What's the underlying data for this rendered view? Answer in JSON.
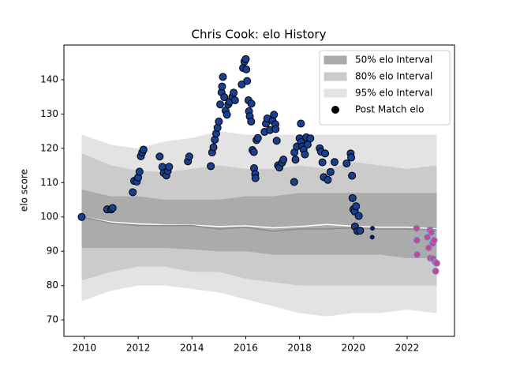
{
  "chart_data": {
    "type": "scatter",
    "title": "Chris Cook: elo History",
    "y_label": "elo score",
    "xlim": [
      2009.24,
      2023.76
    ],
    "ylim": [
      65.2,
      150.1
    ],
    "xticks": [
      2010,
      2012,
      2014,
      2016,
      2018,
      2020,
      2022
    ],
    "yticks": [
      70,
      80,
      90,
      100,
      110,
      120,
      130,
      140
    ],
    "grid": false,
    "legend": "upper right",
    "bands": [
      {
        "name": "95% elo Interval",
        "color": "#e3e3e3",
        "x": [
          2009.9,
          2011,
          2012,
          2013,
          2014,
          2015,
          2016,
          2017,
          2018,
          2019,
          2020,
          2021,
          2022,
          2023.1
        ],
        "lower": [
          75.5,
          78.5,
          80,
          80,
          79,
          78,
          76,
          74,
          72,
          71,
          72,
          72,
          73,
          72
        ],
        "upper": [
          124,
          121,
          120,
          122,
          123,
          125,
          124,
          124,
          124,
          124,
          124,
          124,
          124,
          124
        ]
      },
      {
        "name": "80% elo Interval",
        "color": "#cbcbcb",
        "x": [
          2009.9,
          2011,
          2012,
          2013,
          2014,
          2015,
          2016,
          2017,
          2018,
          2019,
          2020,
          2021,
          2022,
          2023.1
        ],
        "lower": [
          81.5,
          84,
          85.5,
          85.5,
          84,
          84,
          82,
          81,
          80,
          80,
          80,
          80,
          80,
          80
        ],
        "upper": [
          118.5,
          115,
          113.5,
          113,
          114,
          115,
          114,
          114,
          115,
          114,
          116,
          115,
          114,
          115
        ]
      },
      {
        "name": "50% elo Interval",
        "color": "#ababab",
        "x": [
          2009.9,
          2011,
          2012,
          2013,
          2014,
          2015,
          2016,
          2017,
          2018,
          2019,
          2020,
          2021,
          2022,
          2023.1
        ],
        "lower": [
          91,
          91,
          91,
          91,
          90.5,
          90,
          90,
          89,
          89,
          89,
          89,
          89,
          88,
          88
        ],
        "upper": [
          108,
          106,
          106,
          105,
          105,
          105,
          106,
          106,
          107,
          107,
          107,
          107,
          107,
          107
        ]
      }
    ],
    "lines": [
      {
        "color": "#ffffff",
        "x": [
          2009.9,
          2011,
          2012,
          2013,
          2014,
          2015,
          2016,
          2017,
          2018,
          2019,
          2020,
          2021,
          2022,
          2023.1
        ],
        "values": [
          100,
          98.5,
          98,
          97.7,
          97.6,
          97.2,
          97.4,
          96.8,
          97.2,
          97.8,
          97.3,
          97,
          97,
          96.5
        ]
      },
      {
        "color": "#8a8a8a",
        "x": [
          2009.9,
          2011,
          2012,
          2013,
          2014,
          2015,
          2016,
          2017,
          2018,
          2019,
          2020,
          2021,
          2022,
          2023.1
        ],
        "values": [
          100,
          98.2,
          97.5,
          97.5,
          97.5,
          96.5,
          97,
          95.8,
          96.5,
          96.5,
          96.8,
          96.5,
          96.5,
          96.3
        ]
      }
    ],
    "series": [
      {
        "name": "Post Match elo",
        "legend_color": "#000000",
        "color": "#1a3f8f",
        "edgecolor": "#000000",
        "x": [
          2009.9,
          2010.85,
          2011.0,
          2011.05,
          2011.8,
          2011.85,
          2011.95,
          2012.0,
          2012.05,
          2012.1,
          2012.15,
          2012.2,
          2012.8,
          2012.9,
          2012.95,
          2013.05,
          2013.1,
          2013.15,
          2013.85,
          2013.9,
          2014.7,
          2014.75,
          2014.8,
          2014.85,
          2014.9,
          2014.95,
          2015.0,
          2015.05,
          2015.1,
          2015.12,
          2015.15,
          2015.2,
          2015.25,
          2015.3,
          2015.35,
          2015.4,
          2015.5,
          2015.55,
          2015.6,
          2015.85,
          2015.9,
          2015.95,
          2016.0,
          2016.02,
          2016.05,
          2016.1,
          2016.12,
          2016.15,
          2016.2,
          2016.21,
          2016.25,
          2016.3,
          2016.31,
          2016.35,
          2016.36,
          2016.4,
          2016.45,
          2016.7,
          2016.75,
          2016.8,
          2016.9,
          2017.0,
          2017.05,
          2017.1,
          2017.11,
          2017.15,
          2017.2,
          2017.25,
          2017.35,
          2017.4,
          2017.8,
          2017.81,
          2017.85,
          2017.9,
          2018.0,
          2018.05,
          2018.06,
          2018.1,
          2018.15,
          2018.2,
          2018.25,
          2018.3,
          2018.4,
          2018.75,
          2018.8,
          2018.85,
          2018.9,
          2018.95,
          2019.05,
          2019.15,
          2019.3,
          2019.75,
          2019.9,
          2019.92,
          2019.95,
          2019.97,
          2020.0,
          2020.05,
          2020.1,
          2020.06,
          2020.15,
          2020.2,
          2020.25
        ],
        "values": [
          100,
          102.2,
          102.2,
          102.6,
          107.2,
          110.5,
          110.3,
          111.5,
          113.2,
          117.7,
          118.8,
          119.6,
          117.6,
          114.6,
          112.8,
          112.1,
          113.4,
          114.6,
          116.2,
          117.6,
          114.8,
          118.8,
          120.3,
          122.5,
          124.3,
          126.0,
          127.8,
          132.8,
          136.3,
          138.0,
          140.8,
          134.9,
          131.0,
          129.8,
          132.8,
          133.6,
          135.0,
          136.2,
          134.0,
          138.6,
          143.4,
          145.3,
          146.0,
          143.0,
          139.6,
          134.0,
          130.8,
          129.3,
          127.8,
          133.0,
          119.5,
          118.9,
          114.2,
          112.5,
          111.3,
          122.4,
          123.0,
          124.8,
          127.2,
          128.7,
          125.3,
          128.0,
          129.8,
          127.0,
          125.6,
          122.2,
          115.0,
          114.4,
          115.8,
          116.7,
          110.2,
          118.8,
          116.7,
          120.5,
          122.9,
          127.2,
          121.8,
          120.5,
          119.6,
          118.2,
          123.2,
          121.1,
          122.9,
          120.0,
          119.0,
          115.9,
          111.6,
          118.5,
          110.8,
          113.1,
          116.0,
          115.6,
          118.5,
          117.3,
          112.0,
          105.5,
          102.2,
          101.6,
          103.1,
          97.2,
          95.9,
          100.3,
          96.0
        ]
      },
      {
        "color": "#0b1a55",
        "edgecolor": "#0b1a55",
        "x": [
          2020.7,
          2020.71
        ],
        "values": [
          94.1,
          96.7
        ]
      },
      {
        "color": "#c8468a",
        "edgecolor": "#6a9ad8",
        "x": [
          2022.35,
          2022.36,
          2022.37,
          2022.75,
          2022.8,
          2022.85,
          2022.9,
          2022.95,
          2022.86,
          2022.96,
          2023.0,
          2023.05,
          2023.1,
          2023.06
        ],
        "values": [
          96.7,
          93.2,
          89.0,
          94.1,
          91.0,
          96.2,
          95.5,
          92.3,
          88.0,
          87.8,
          93.2,
          86.8,
          86.5,
          84.2
        ]
      }
    ]
  }
}
